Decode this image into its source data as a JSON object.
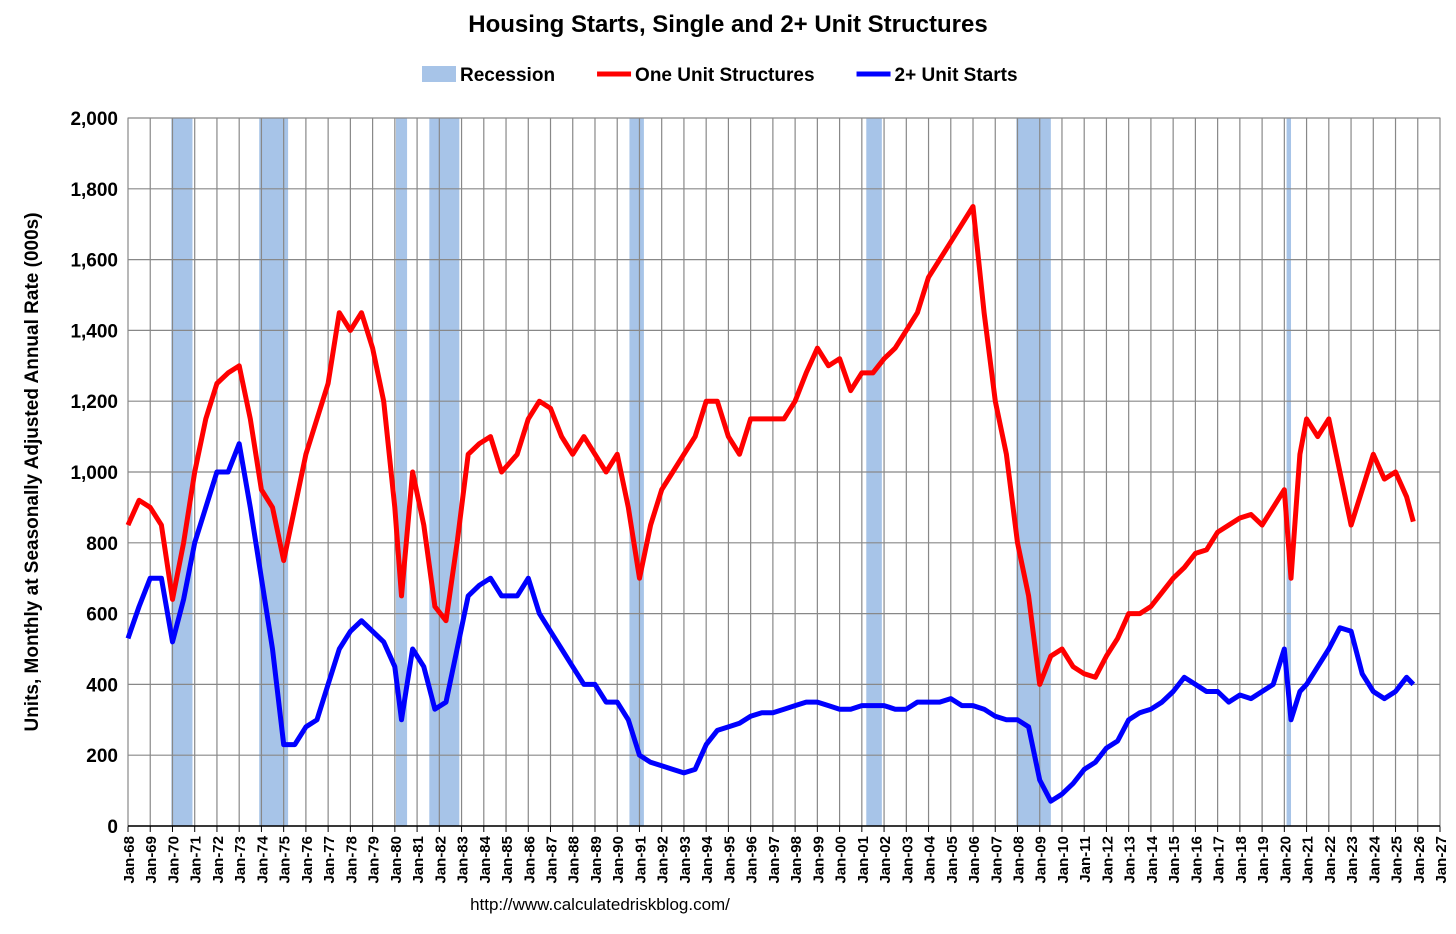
{
  "chart_data": {
    "type": "line",
    "title": "Housing Starts, Single and 2+ Unit Structures",
    "ylabel": "Units, Monthly at Seasonally Adjusted Annual Rate (000s)",
    "source": "http://www.calculatedriskblog.com/",
    "grid": true,
    "legend": "top",
    "xlim": [
      1968,
      2027
    ],
    "ylim": [
      0,
      2000
    ],
    "yticks": [
      0,
      200,
      400,
      600,
      800,
      {
        "value": 1000,
        "label": "1,000"
      },
      {
        "value": 1200,
        "label": "1,200"
      },
      {
        "value": 1400,
        "label": "1,400"
      },
      {
        "value": 1600,
        "label": "1,600"
      },
      {
        "value": 1800,
        "label": "1,800"
      },
      {
        "value": 2000,
        "label": "2,000"
      }
    ],
    "xticks": [
      {
        "value": 1968,
        "label": "Jan-68"
      },
      {
        "value": 1969,
        "label": "Jan-69"
      },
      {
        "value": 1970,
        "label": "Jan-70"
      },
      {
        "value": 1971,
        "label": "Jan-71"
      },
      {
        "value": 1972,
        "label": "Jan-72"
      },
      {
        "value": 1973,
        "label": "Jan-73"
      },
      {
        "value": 1974,
        "label": "Jan-74"
      },
      {
        "value": 1975,
        "label": "Jan-75"
      },
      {
        "value": 1976,
        "label": "Jan-76"
      },
      {
        "value": 1977,
        "label": "Jan-77"
      },
      {
        "value": 1978,
        "label": "Jan-78"
      },
      {
        "value": 1979,
        "label": "Jan-79"
      },
      {
        "value": 1980,
        "label": "Jan-80"
      },
      {
        "value": 1981,
        "label": "Jan-81"
      },
      {
        "value": 1982,
        "label": "Jan-82"
      },
      {
        "value": 1983,
        "label": "Jan-83"
      },
      {
        "value": 1984,
        "label": "Jan-84"
      },
      {
        "value": 1985,
        "label": "Jan-85"
      },
      {
        "value": 1986,
        "label": "Jan-86"
      },
      {
        "value": 1987,
        "label": "Jan-87"
      },
      {
        "value": 1988,
        "label": "Jan-88"
      },
      {
        "value": 1989,
        "label": "Jan-89"
      },
      {
        "value": 1990,
        "label": "Jan-90"
      },
      {
        "value": 1991,
        "label": "Jan-91"
      },
      {
        "value": 1992,
        "label": "Jan-92"
      },
      {
        "value": 1993,
        "label": "Jan-93"
      },
      {
        "value": 1994,
        "label": "Jan-94"
      },
      {
        "value": 1995,
        "label": "Jan-95"
      },
      {
        "value": 1996,
        "label": "Jan-96"
      },
      {
        "value": 1997,
        "label": "Jan-97"
      },
      {
        "value": 1998,
        "label": "Jan-98"
      },
      {
        "value": 1999,
        "label": "Jan-99"
      },
      {
        "value": 2000,
        "label": "Jan-00"
      },
      {
        "value": 2001,
        "label": "Jan-01"
      },
      {
        "value": 2002,
        "label": "Jan-02"
      },
      {
        "value": 2003,
        "label": "Jan-03"
      },
      {
        "value": 2004,
        "label": "Jan-04"
      },
      {
        "value": 2005,
        "label": "Jan-05"
      },
      {
        "value": 2006,
        "label": "Jan-06"
      },
      {
        "value": 2007,
        "label": "Jan-07"
      },
      {
        "value": 2008,
        "label": "Jan-08"
      },
      {
        "value": 2009,
        "label": "Jan-09"
      },
      {
        "value": 2010,
        "label": "Jan-10"
      },
      {
        "value": 2011,
        "label": "Jan-11"
      },
      {
        "value": 2012,
        "label": "Jan-12"
      },
      {
        "value": 2013,
        "label": "Jan-13"
      },
      {
        "value": 2014,
        "label": "Jan-14"
      },
      {
        "value": 2015,
        "label": "Jan-15"
      },
      {
        "value": 2016,
        "label": "Jan-16"
      },
      {
        "value": 2017,
        "label": "Jan-17"
      },
      {
        "value": 2018,
        "label": "Jan-18"
      },
      {
        "value": 2019,
        "label": "Jan-19"
      },
      {
        "value": 2020,
        "label": "Jan-20"
      },
      {
        "value": 2021,
        "label": "Jan-21"
      },
      {
        "value": 2022,
        "label": "Jan-22"
      },
      {
        "value": 2023,
        "label": "Jan-23"
      },
      {
        "value": 2024,
        "label": "Jan-24"
      },
      {
        "value": 2025,
        "label": "Jan-25"
      },
      {
        "value": 2026,
        "label": "Jan-26"
      },
      {
        "value": 2027,
        "label": "Jan-27"
      }
    ],
    "recession": {
      "name": "Recession",
      "color": "#a7c4e8",
      "periods": [
        [
          1969.95,
          1970.9
        ],
        [
          1973.9,
          1975.2
        ],
        [
          1980.05,
          1980.55
        ],
        [
          1981.55,
          1982.9
        ],
        [
          1990.55,
          1991.2
        ],
        [
          2001.2,
          2001.9
        ],
        [
          2007.95,
          2009.5
        ],
        [
          2020.1,
          2020.3
        ]
      ]
    },
    "x": [
      1968.0,
      1968.5,
      1969.0,
      1969.5,
      1970.0,
      1970.5,
      1971.0,
      1971.5,
      1972.0,
      1972.5,
      1973.0,
      1973.5,
      1974.0,
      1974.5,
      1975.0,
      1975.5,
      1976.0,
      1976.5,
      1977.0,
      1977.5,
      1978.0,
      1978.5,
      1979.0,
      1979.5,
      1980.0,
      1980.3,
      1980.8,
      1981.3,
      1981.8,
      1982.3,
      1982.8,
      1983.3,
      1983.8,
      1984.3,
      1984.8,
      1985.5,
      1986.0,
      1986.5,
      1987.0,
      1987.5,
      1988.0,
      1988.5,
      1989.0,
      1989.5,
      1990.0,
      1990.5,
      1991.0,
      1991.5,
      1992.0,
      1992.5,
      1993.0,
      1993.5,
      1994.0,
      1994.5,
      1995.0,
      1995.5,
      1996.0,
      1996.5,
      1997.0,
      1997.5,
      1998.0,
      1998.5,
      1999.0,
      1999.5,
      2000.0,
      2000.5,
      2001.0,
      2001.5,
      2002.0,
      2002.5,
      2003.0,
      2003.5,
      2004.0,
      2004.5,
      2005.0,
      2005.5,
      2006.0,
      2006.5,
      2007.0,
      2007.5,
      2008.0,
      2008.5,
      2009.0,
      2009.5,
      2010.0,
      2010.5,
      2011.0,
      2011.5,
      2012.0,
      2012.5,
      2013.0,
      2013.5,
      2014.0,
      2014.5,
      2015.0,
      2015.5,
      2016.0,
      2016.5,
      2017.0,
      2017.5,
      2018.0,
      2018.5,
      2019.0,
      2019.5,
      2020.0,
      2020.3,
      2020.7,
      2021.0,
      2021.5,
      2022.0,
      2022.5,
      2023.0,
      2023.5,
      2024.0,
      2024.5,
      2025.0,
      2025.5,
      2025.8
    ],
    "series": [
      {
        "name": "One Unit Structures",
        "color": "#ff0000",
        "values": [
          850,
          920,
          900,
          850,
          640,
          800,
          1000,
          1150,
          1250,
          1280,
          1300,
          1150,
          950,
          900,
          750,
          900,
          1050,
          1150,
          1250,
          1450,
          1400,
          1450,
          1350,
          1200,
          900,
          650,
          1000,
          850,
          620,
          580,
          800,
          1050,
          1080,
          1100,
          1000,
          1050,
          1150,
          1200,
          1180,
          1100,
          1050,
          1100,
          1050,
          1000,
          1050,
          900,
          700,
          850,
          950,
          1000,
          1050,
          1100,
          1200,
          1200,
          1100,
          1050,
          1150,
          1150,
          1150,
          1150,
          1200,
          1280,
          1350,
          1300,
          1320,
          1230,
          1280,
          1280,
          1320,
          1350,
          1400,
          1450,
          1550,
          1600,
          1650,
          1700,
          1750,
          1450,
          1200,
          1050,
          800,
          650,
          400,
          480,
          500,
          450,
          430,
          420,
          480,
          530,
          600,
          600,
          620,
          660,
          700,
          730,
          770,
          780,
          830,
          850,
          870,
          880,
          850,
          900,
          950,
          700,
          1050,
          1150,
          1100,
          1150,
          1000,
          850,
          950,
          1050,
          980,
          1000,
          930,
          860
        ]
      },
      {
        "name": "2+ Unit Starts",
        "color": "#0000ff",
        "values": [
          530,
          620,
          700,
          700,
          520,
          640,
          800,
          900,
          1000,
          1000,
          1080,
          900,
          700,
          500,
          230,
          230,
          280,
          300,
          400,
          500,
          550,
          580,
          550,
          520,
          450,
          300,
          500,
          450,
          330,
          350,
          500,
          650,
          680,
          700,
          650,
          650,
          700,
          600,
          550,
          500,
          450,
          400,
          400,
          350,
          350,
          300,
          200,
          180,
          170,
          160,
          150,
          160,
          230,
          270,
          280,
          290,
          310,
          320,
          320,
          330,
          340,
          350,
          350,
          340,
          330,
          330,
          340,
          340,
          340,
          330,
          330,
          350,
          350,
          350,
          360,
          340,
          340,
          330,
          310,
          300,
          300,
          280,
          130,
          70,
          90,
          120,
          160,
          180,
          220,
          240,
          300,
          320,
          330,
          350,
          380,
          420,
          400,
          380,
          380,
          350,
          370,
          360,
          380,
          400,
          500,
          300,
          380,
          400,
          450,
          500,
          560,
          550,
          430,
          380,
          360,
          380,
          420,
          400
        ]
      }
    ]
  }
}
